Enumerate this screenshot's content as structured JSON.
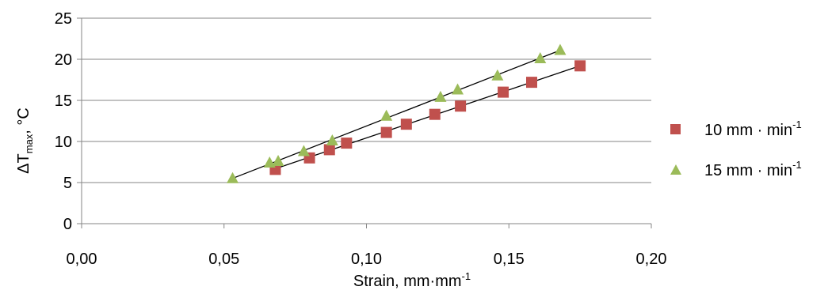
{
  "chart_data": {
    "type": "scatter",
    "title": "",
    "xlabel": {
      "main": "Strain, mm·mm",
      "sup": "-1"
    },
    "ylabel": {
      "prefix": "ΔT",
      "sub": "max",
      "suffix": ", °C"
    },
    "xlim": [
      0,
      0.2
    ],
    "ylim": [
      0,
      25
    ],
    "x_ticks": [
      0,
      0.05,
      0.1,
      0.15,
      0.2
    ],
    "x_tick_labels": [
      "0,00",
      "0,05",
      "0,10",
      "0,15",
      "0,20"
    ],
    "y_ticks": [
      0,
      5,
      10,
      15,
      20,
      25
    ],
    "y_tick_labels": [
      "0",
      "5",
      "10",
      "15",
      "20",
      "25"
    ],
    "grid": "horizontal",
    "legend_position": "right",
    "series": [
      {
        "name": "10 mm · min",
        "name_sup": "-1",
        "marker": "square",
        "color": "#c0504d",
        "trendline": "linear",
        "points": [
          [
            0.068,
            6.6
          ],
          [
            0.08,
            8.0
          ],
          [
            0.087,
            9.0
          ],
          [
            0.093,
            9.8
          ],
          [
            0.107,
            11.1
          ],
          [
            0.114,
            12.1
          ],
          [
            0.124,
            13.3
          ],
          [
            0.133,
            14.3
          ],
          [
            0.148,
            16.0
          ],
          [
            0.158,
            17.2
          ],
          [
            0.175,
            19.2
          ]
        ]
      },
      {
        "name": "15 mm · min",
        "name_sup": "-1",
        "marker": "triangle",
        "color": "#9bbb59",
        "trendline": "linear",
        "points": [
          [
            0.053,
            5.5
          ],
          [
            0.066,
            7.4
          ],
          [
            0.069,
            7.6
          ],
          [
            0.078,
            8.8
          ],
          [
            0.088,
            10.1
          ],
          [
            0.107,
            13.1
          ],
          [
            0.126,
            15.4
          ],
          [
            0.132,
            16.3
          ],
          [
            0.146,
            18.0
          ],
          [
            0.161,
            20.1
          ],
          [
            0.168,
            21.1
          ]
        ]
      }
    ]
  }
}
